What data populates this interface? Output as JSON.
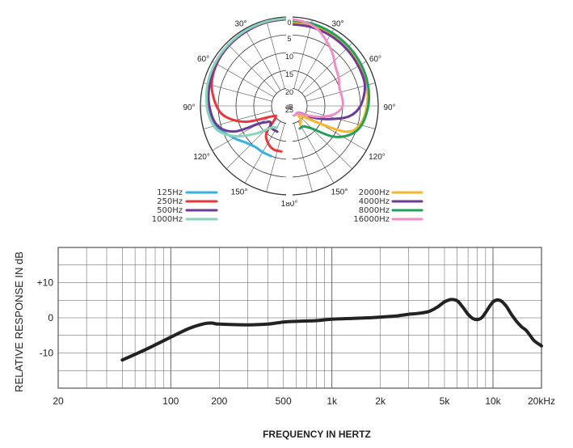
{
  "chart_data": [
    {
      "type": "polar",
      "angle_labels": [
        "0",
        "30°",
        "60°",
        "90°",
        "120°",
        "150°",
        "180°",
        "30°",
        "60°",
        "90°",
        "120°",
        "150°"
      ],
      "radial_labels": [
        "0",
        "5",
        "10",
        "15",
        "20",
        "25"
      ],
      "radial_unit": "dB",
      "rlim": [
        0,
        25
      ],
      "legend": "bottom",
      "series": [
        {
          "name": "125Hz",
          "color": "#35b1e3",
          "side": "left",
          "points": [
            [
              0,
              0.5
            ],
            [
              15,
              0.5
            ],
            [
              30,
              0.6
            ],
            [
              45,
              0.8
            ],
            [
              60,
              1
            ],
            [
              75,
              1.3
            ],
            [
              90,
              2.1
            ],
            [
              105,
              3.5
            ],
            [
              120,
              7
            ],
            [
              130,
              9
            ],
            [
              140,
              10
            ],
            [
              150,
              10
            ],
            [
              160,
              10
            ]
          ]
        },
        {
          "name": "250Hz",
          "color": "#e8373a",
          "side": "left",
          "points": [
            [
              0,
              0.5
            ],
            [
              15,
              0.6
            ],
            [
              30,
              0.8
            ],
            [
              45,
              1
            ],
            [
              60,
              1.4
            ],
            [
              75,
              2.4
            ],
            [
              90,
              4.5
            ],
            [
              100,
              7
            ],
            [
              110,
              12
            ],
            [
              120,
              19
            ],
            [
              130,
              20
            ],
            [
              140,
              15
            ],
            [
              150,
              13
            ],
            [
              160,
              12
            ],
            [
              170,
              12
            ]
          ]
        },
        {
          "name": "500Hz",
          "color": "#6e3a97",
          "side": "left",
          "points": [
            [
              0,
              0.5
            ],
            [
              15,
              0.6
            ],
            [
              30,
              0.8
            ],
            [
              45,
              1
            ],
            [
              60,
              1.3
            ],
            [
              75,
              1.8
            ],
            [
              90,
              2.5
            ],
            [
              105,
              4
            ],
            [
              115,
              8
            ],
            [
              120,
              15
            ],
            [
              125,
              17
            ],
            [
              130,
              18
            ],
            [
              140,
              17
            ],
            [
              155,
              17
            ]
          ]
        },
        {
          "name": "1000Hz",
          "color": "#8ad3b8",
          "side": "left",
          "points": [
            [
              0,
              0.3
            ],
            [
              15,
              0.4
            ],
            [
              30,
              0.5
            ],
            [
              45,
              0.7
            ],
            [
              60,
              0.9
            ],
            [
              75,
              1.2
            ],
            [
              90,
              1.8
            ],
            [
              100,
              2.5
            ],
            [
              110,
              4
            ],
            [
              120,
              8
            ],
            [
              130,
              13
            ],
            [
              140,
              17
            ],
            [
              150,
              18
            ]
          ]
        },
        {
          "name": "2000Hz",
          "color": "#f6b72d",
          "side": "right",
          "points": [
            [
              0,
              1.5
            ],
            [
              15,
              1.5
            ],
            [
              30,
              1.6
            ],
            [
              45,
              1.8
            ],
            [
              60,
              2
            ],
            [
              75,
              2.5
            ],
            [
              90,
              3.2
            ],
            [
              105,
              4.5
            ],
            [
              115,
              8
            ],
            [
              125,
              19
            ],
            [
              130,
              22
            ],
            [
              140,
              20
            ],
            [
              150,
              19
            ]
          ]
        },
        {
          "name": "4000Hz",
          "color": "#6e3a97",
          "side": "right",
          "points": [
            [
              0,
              2
            ],
            [
              15,
              2
            ],
            [
              30,
              2.1
            ],
            [
              45,
              2.3
            ],
            [
              60,
              2.6
            ],
            [
              75,
              3
            ],
            [
              90,
              5
            ],
            [
              100,
              8
            ],
            [
              108,
              13
            ],
            [
              115,
              17
            ],
            [
              122,
              21
            ],
            [
              130,
              22
            ],
            [
              145,
              22
            ]
          ]
        },
        {
          "name": "8000Hz",
          "color": "#21a158",
          "side": "right",
          "points": [
            [
              0,
              1
            ],
            [
              15,
              1
            ],
            [
              30,
              1.2
            ],
            [
              45,
              1.4
            ],
            [
              60,
              1.7
            ],
            [
              75,
              2.1
            ],
            [
              90,
              2.8
            ],
            [
              105,
              4
            ],
            [
              115,
              6
            ],
            [
              125,
              10
            ],
            [
              135,
              16
            ],
            [
              145,
              18
            ],
            [
              155,
              18
            ]
          ]
        },
        {
          "name": "16000Hz",
          "color": "#f08dc4",
          "side": "right",
          "points": [
            [
              0,
              0.5
            ],
            [
              10,
              1
            ],
            [
              20,
              2
            ],
            [
              30,
              4
            ],
            [
              40,
              6
            ],
            [
              50,
              8
            ],
            [
              60,
              9
            ],
            [
              70,
              10
            ],
            [
              80,
              10
            ],
            [
              90,
              10
            ],
            [
              100,
              12
            ],
            [
              110,
              16
            ],
            [
              120,
              20
            ],
            [
              130,
              22
            ],
            [
              145,
              22
            ],
            [
              155,
              22
            ]
          ]
        }
      ]
    },
    {
      "type": "line",
      "xscale": "log",
      "xlabel": "FREQUENCY IN HERTZ",
      "ylabel": "RELATIVE RESPONSE IN dB",
      "xlim": [
        20,
        20000
      ],
      "ylim": [
        -20,
        20
      ],
      "x_ticks": [
        {
          "value": 20,
          "label": "20"
        },
        {
          "value": 100,
          "label": "100"
        },
        {
          "value": 200,
          "label": "200"
        },
        {
          "value": 500,
          "label": "500"
        },
        {
          "value": 1000,
          "label": "1k"
        },
        {
          "value": 2000,
          "label": "2k"
        },
        {
          "value": 5000,
          "label": "5k"
        },
        {
          "value": 10000,
          "label": "10k"
        },
        {
          "value": 20000,
          "label": "20kHz"
        }
      ],
      "y_ticks": [
        {
          "value": 10,
          "label": "+10"
        },
        {
          "value": 0,
          "label": "0"
        },
        {
          "value": -10,
          "label": "-10"
        }
      ],
      "grid": true,
      "series": [
        {
          "color": "#222222",
          "points": [
            [
              50,
              -12
            ],
            [
              70,
              -9
            ],
            [
              100,
              -5.5
            ],
            [
              130,
              -3
            ],
            [
              160,
              -1.7
            ],
            [
              180,
              -1.5
            ],
            [
              200,
              -1.8
            ],
            [
              300,
              -2
            ],
            [
              400,
              -1.8
            ],
            [
              500,
              -1.2
            ],
            [
              600,
              -1
            ],
            [
              800,
              -0.8
            ],
            [
              1000,
              -0.4
            ],
            [
              1500,
              -0.1
            ],
            [
              2000,
              0.2
            ],
            [
              2500,
              0.5
            ],
            [
              3000,
              1
            ],
            [
              3500,
              1.3
            ],
            [
              4000,
              1.8
            ],
            [
              4500,
              3
            ],
            [
              5000,
              4.5
            ],
            [
              5500,
              5.2
            ],
            [
              6000,
              4.8
            ],
            [
              6500,
              3
            ],
            [
              7000,
              1
            ],
            [
              7500,
              -0.2
            ],
            [
              8000,
              -0.5
            ],
            [
              8500,
              0
            ],
            [
              9000,
              1.5
            ],
            [
              10000,
              4.5
            ],
            [
              11000,
              5
            ],
            [
              12000,
              3.5
            ],
            [
              13000,
              1
            ],
            [
              14000,
              -1
            ],
            [
              15000,
              -2.5
            ],
            [
              16000,
              -3.5
            ],
            [
              17000,
              -5
            ],
            [
              18000,
              -6.5
            ],
            [
              20000,
              -8
            ]
          ]
        }
      ]
    }
  ]
}
